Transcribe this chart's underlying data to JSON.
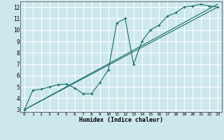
{
  "xlabel": "Humidex (Indice chaleur)",
  "ylabel": "",
  "xlim": [
    -0.5,
    23.5
  ],
  "ylim": [
    2.8,
    12.5
  ],
  "xticks": [
    0,
    1,
    2,
    3,
    4,
    5,
    6,
    7,
    8,
    9,
    10,
    11,
    12,
    13,
    14,
    15,
    16,
    17,
    18,
    19,
    20,
    21,
    22,
    23
  ],
  "yticks": [
    3,
    4,
    5,
    6,
    7,
    8,
    9,
    10,
    11,
    12
  ],
  "bg_color": "#cde8ed",
  "grid_color": "#ffffff",
  "line_color": "#1a6b6b",
  "line1_x": [
    0,
    1,
    2,
    3,
    4,
    5,
    6,
    7,
    8,
    9,
    10,
    11,
    12,
    13,
    14,
    15,
    16,
    17,
    18,
    19,
    20,
    21,
    22,
    23
  ],
  "line1_y": [
    3.0,
    4.7,
    4.8,
    5.0,
    5.2,
    5.25,
    4.9,
    4.4,
    4.4,
    5.4,
    6.5,
    10.6,
    11.0,
    7.0,
    9.0,
    10.0,
    10.4,
    11.2,
    11.5,
    12.0,
    12.1,
    12.25,
    12.1,
    12.0
  ],
  "line2_x": [
    0,
    23
  ],
  "line2_y": [
    3.0,
    12.0
  ],
  "line3_x": [
    0,
    23
  ],
  "line3_y": [
    3.0,
    12.25
  ]
}
